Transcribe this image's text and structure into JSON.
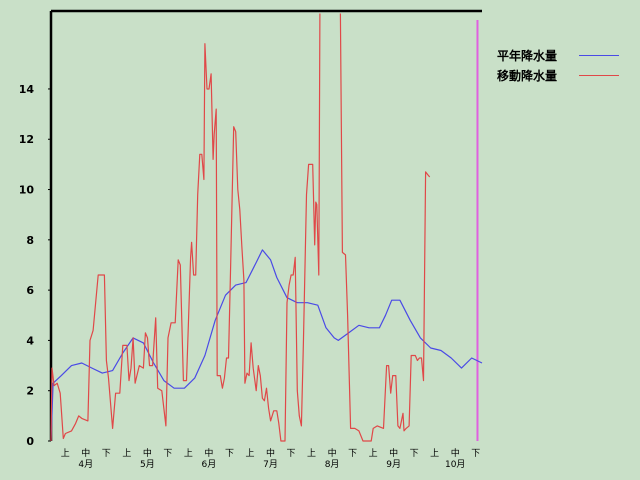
{
  "chart_data": {
    "type": "line",
    "title": "",
    "xlabel": "",
    "ylabel": "",
    "ylim": [
      0,
      17
    ],
    "yticks": [
      0,
      2,
      4,
      6,
      8,
      10,
      12,
      14
    ],
    "xlim": [
      0,
      21
    ],
    "x_ticks": [
      {
        "x": 0.5,
        "label": "上"
      },
      {
        "x": 1.5,
        "label": "中"
      },
      {
        "x": 2.5,
        "label": "下"
      },
      {
        "x": 3.5,
        "label": "上"
      },
      {
        "x": 4.5,
        "label": "中"
      },
      {
        "x": 5.5,
        "label": "下"
      },
      {
        "x": 6.5,
        "label": "上"
      },
      {
        "x": 7.5,
        "label": "中"
      },
      {
        "x": 8.5,
        "label": "下"
      },
      {
        "x": 9.5,
        "label": "上"
      },
      {
        "x": 10.5,
        "label": "中"
      },
      {
        "x": 11.5,
        "label": "下"
      },
      {
        "x": 12.5,
        "label": "上"
      },
      {
        "x": 13.5,
        "label": "中"
      },
      {
        "x": 14.5,
        "label": "下"
      },
      {
        "x": 15.5,
        "label": "上"
      },
      {
        "x": 16.5,
        "label": "中"
      },
      {
        "x": 17.5,
        "label": "下"
      },
      {
        "x": 18.5,
        "label": "上"
      },
      {
        "x": 19.5,
        "label": "中"
      },
      {
        "x": 20.5,
        "label": "下"
      }
    ],
    "months": [
      {
        "x": 1.5,
        "label": "4月"
      },
      {
        "x": 4.5,
        "label": "5月"
      },
      {
        "x": 7.5,
        "label": "6月"
      },
      {
        "x": 10.5,
        "label": "7月"
      },
      {
        "x": 13.5,
        "label": "8月"
      },
      {
        "x": 16.5,
        "label": "9月"
      },
      {
        "x": 19.5,
        "label": "10月"
      }
    ],
    "current_marker_x": 20.78,
    "legend_position": "top-right",
    "series": [
      {
        "name": "平年降水量",
        "color": "#4a4ae6",
        "points": [
          [
            0,
            0
          ],
          [
            0.1,
            2.3
          ],
          [
            0.5,
            2.6
          ],
          [
            1,
            3.0
          ],
          [
            1.5,
            3.1
          ],
          [
            2,
            2.9
          ],
          [
            2.5,
            2.7
          ],
          [
            3,
            2.8
          ],
          [
            3.5,
            3.5
          ],
          [
            4,
            4.1
          ],
          [
            4.5,
            3.9
          ],
          [
            5,
            3.1
          ],
          [
            5.5,
            2.4
          ],
          [
            6,
            2.1
          ],
          [
            6.5,
            2.1
          ],
          [
            7,
            2.5
          ],
          [
            7.5,
            3.4
          ],
          [
            8,
            4.8
          ],
          [
            8.5,
            5.8
          ],
          [
            9,
            6.2
          ],
          [
            9.5,
            6.3
          ],
          [
            10,
            7.1
          ],
          [
            10.3,
            7.6
          ],
          [
            10.7,
            7.2
          ],
          [
            11,
            6.5
          ],
          [
            11.5,
            5.7
          ],
          [
            12,
            5.5
          ],
          [
            12.5,
            5.5
          ],
          [
            13,
            5.4
          ],
          [
            13.4,
            4.5
          ],
          [
            13.8,
            4.1
          ],
          [
            14,
            4.0
          ],
          [
            14.5,
            4.3
          ],
          [
            15,
            4.6
          ],
          [
            15.5,
            4.5
          ],
          [
            16,
            4.5
          ],
          [
            16.3,
            5.0
          ],
          [
            16.6,
            5.6
          ],
          [
            17,
            5.6
          ],
          [
            17.5,
            4.8
          ],
          [
            18,
            4.1
          ],
          [
            18.5,
            3.7
          ],
          [
            19,
            3.6
          ],
          [
            19.5,
            3.3
          ],
          [
            20,
            2.9
          ],
          [
            20.5,
            3.3
          ],
          [
            21,
            3.1
          ]
        ]
      },
      {
        "name": "移動降水量",
        "color": "#e04848",
        "points": [
          [
            0,
            0
          ],
          [
            0.05,
            2.9
          ],
          [
            0.15,
            2.2
          ],
          [
            0.3,
            2.3
          ],
          [
            0.45,
            1.9
          ],
          [
            0.6,
            0.1
          ],
          [
            0.7,
            0.3
          ],
          [
            1.0,
            0.4
          ],
          [
            1.2,
            0.7
          ],
          [
            1.35,
            1.0
          ],
          [
            1.5,
            0.9
          ],
          [
            1.8,
            0.8
          ],
          [
            1.9,
            4.0
          ],
          [
            2.05,
            4.4
          ],
          [
            2.3,
            6.6
          ],
          [
            2.6,
            6.6
          ],
          [
            2.7,
            3.2
          ],
          [
            2.8,
            2.5
          ],
          [
            3.0,
            0.5
          ],
          [
            3.15,
            1.9
          ],
          [
            3.35,
            1.9
          ],
          [
            3.5,
            3.8
          ],
          [
            3.7,
            3.8
          ],
          [
            3.8,
            2.4
          ],
          [
            3.9,
            2.9
          ],
          [
            4.0,
            4.1
          ],
          [
            4.1,
            2.3
          ],
          [
            4.3,
            3.0
          ],
          [
            4.5,
            2.9
          ],
          [
            4.6,
            4.3
          ],
          [
            4.7,
            4.1
          ],
          [
            4.8,
            3.0
          ],
          [
            4.95,
            3.0
          ],
          [
            5.1,
            4.9
          ],
          [
            5.2,
            2.1
          ],
          [
            5.4,
            2.0
          ],
          [
            5.6,
            0.6
          ],
          [
            5.7,
            4.1
          ],
          [
            5.85,
            4.7
          ],
          [
            6.05,
            4.7
          ],
          [
            6.2,
            7.2
          ],
          [
            6.3,
            7.0
          ],
          [
            6.45,
            2.4
          ],
          [
            6.6,
            2.4
          ],
          [
            6.8,
            7.3
          ],
          [
            6.85,
            7.9
          ],
          [
            6.95,
            6.6
          ],
          [
            7.05,
            6.6
          ],
          [
            7.15,
            9.8
          ],
          [
            7.25,
            11.4
          ],
          [
            7.35,
            11.4
          ],
          [
            7.45,
            10.4
          ],
          [
            7.5,
            15.8
          ],
          [
            7.6,
            14.0
          ],
          [
            7.7,
            14.0
          ],
          [
            7.8,
            14.6
          ],
          [
            7.9,
            11.2
          ],
          [
            7.95,
            12.2
          ],
          [
            8.05,
            13.2
          ],
          [
            8.1,
            2.6
          ],
          [
            8.25,
            2.6
          ],
          [
            8.35,
            2.1
          ],
          [
            8.45,
            2.5
          ],
          [
            8.55,
            3.3
          ],
          [
            8.65,
            3.3
          ],
          [
            8.75,
            6.9
          ],
          [
            8.9,
            12.5
          ],
          [
            9.0,
            12.3
          ],
          [
            9.1,
            10.0
          ],
          [
            9.2,
            9.2
          ],
          [
            9.3,
            7.7
          ],
          [
            9.4,
            6.4
          ],
          [
            9.45,
            2.3
          ],
          [
            9.55,
            2.7
          ],
          [
            9.65,
            2.6
          ],
          [
            9.75,
            3.9
          ],
          [
            9.85,
            2.9
          ],
          [
            10.0,
            2.0
          ],
          [
            10.1,
            3.0
          ],
          [
            10.2,
            2.6
          ],
          [
            10.3,
            1.7
          ],
          [
            10.4,
            1.6
          ],
          [
            10.5,
            2.1
          ],
          [
            10.6,
            1.3
          ],
          [
            10.7,
            0.8
          ],
          [
            10.85,
            1.2
          ],
          [
            11.0,
            1.2
          ],
          [
            11.1,
            0.7
          ],
          [
            11.2,
            0.0
          ],
          [
            11.4,
            0.0
          ],
          [
            11.5,
            5.5
          ],
          [
            11.6,
            6.2
          ],
          [
            11.7,
            6.6
          ],
          [
            11.8,
            6.6
          ],
          [
            11.9,
            7.3
          ],
          [
            12.0,
            2.0
          ],
          [
            12.1,
            1.0
          ],
          [
            12.2,
            0.6
          ],
          [
            12.3,
            3.9
          ],
          [
            12.45,
            9.8
          ],
          [
            12.55,
            11.0
          ],
          [
            12.75,
            11.0
          ],
          [
            12.85,
            7.8
          ],
          [
            12.9,
            9.5
          ],
          [
            12.95,
            9.4
          ],
          [
            13.05,
            6.6
          ],
          [
            13.1,
            17.0
          ]
        ]
      },
      {
        "name": "移動降水量",
        "color": "#e04848",
        "points": [
          [
            14.1,
            17.0
          ],
          [
            14.2,
            7.5
          ],
          [
            14.35,
            7.4
          ],
          [
            14.45,
            5.0
          ],
          [
            14.6,
            0.5
          ],
          [
            14.8,
            0.5
          ],
          [
            15.0,
            0.4
          ],
          [
            15.2,
            0.0
          ],
          [
            15.6,
            0.0
          ],
          [
            15.7,
            0.5
          ],
          [
            15.9,
            0.6
          ],
          [
            16.2,
            0.5
          ],
          [
            16.35,
            3.0
          ],
          [
            16.45,
            3.0
          ],
          [
            16.55,
            1.9
          ],
          [
            16.65,
            2.6
          ],
          [
            16.8,
            2.6
          ],
          [
            16.9,
            0.6
          ],
          [
            17.0,
            0.5
          ],
          [
            17.15,
            1.1
          ],
          [
            17.2,
            0.4
          ],
          [
            17.3,
            0.5
          ],
          [
            17.45,
            0.6
          ],
          [
            17.55,
            3.4
          ],
          [
            17.75,
            3.4
          ],
          [
            17.85,
            3.2
          ],
          [
            17.95,
            3.3
          ],
          [
            18.05,
            3.3
          ],
          [
            18.15,
            2.4
          ],
          [
            18.25,
            10.7
          ],
          [
            18.35,
            10.6
          ],
          [
            18.45,
            10.5
          ]
        ]
      }
    ]
  }
}
